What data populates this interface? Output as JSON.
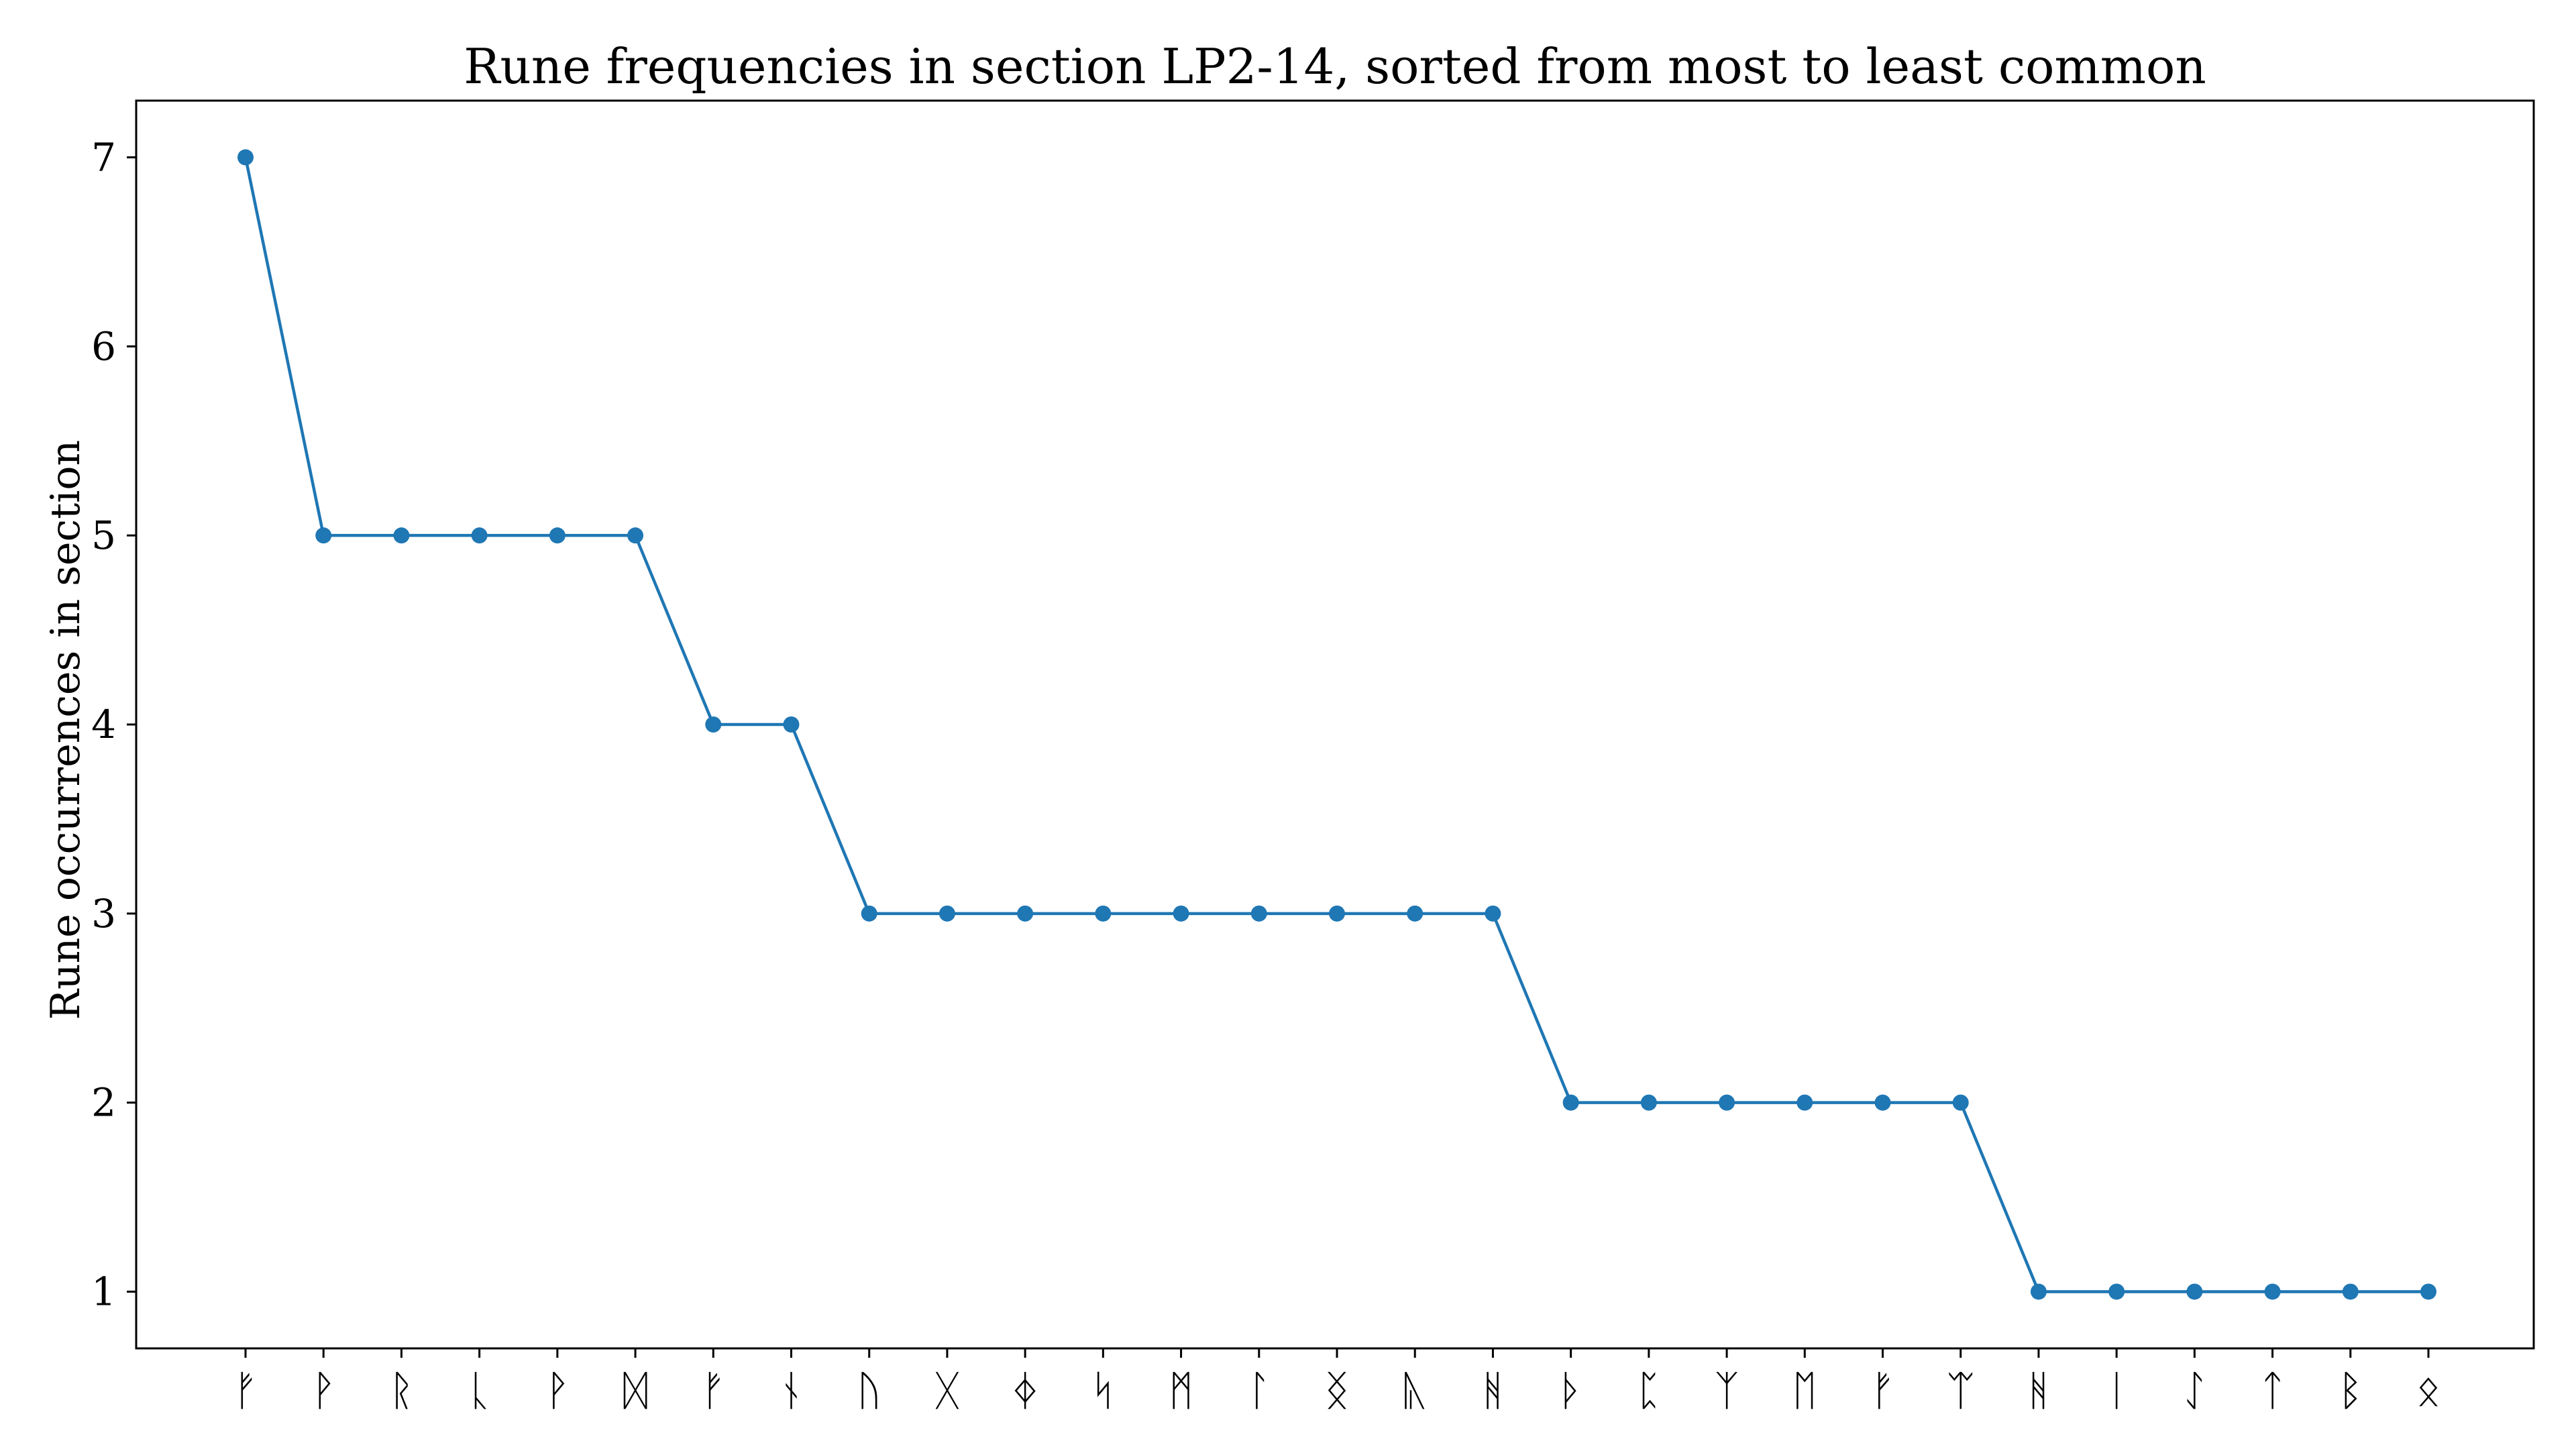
{
  "chart_data": {
    "type": "line",
    "title": "Rune frequencies in section LP2-14, sorted from most to least common",
    "xlabel": "",
    "ylabel": "Rune occurrences in section",
    "categories": [
      "ᚠ",
      "ᚹ",
      "ᚱ",
      "ᚳ",
      "ᚹ",
      "ᛞ",
      "ᚠ",
      "ᚾ",
      "ᚢ",
      "ᚷ",
      "ᛄ",
      "ᛋ",
      "ᛗ",
      "ᛚ",
      "ᛝ",
      "ᚣ",
      "ᚻ",
      "ᚦ",
      "ᛈ",
      "ᛉ",
      "ᛖ",
      "ᚠ",
      "ᛠ",
      "ᚻ",
      "ᛁ",
      "ᛇ",
      "ᛏ",
      "ᛒ",
      "ᛟ"
    ],
    "series": [
      {
        "values": [
          7,
          5,
          5,
          5,
          5,
          5,
          4,
          4,
          3,
          3,
          3,
          3,
          3,
          3,
          3,
          3,
          3,
          2,
          2,
          2,
          2,
          2,
          2,
          1,
          1,
          1,
          1,
          1,
          1
        ],
        "color": "#1f77b4"
      }
    ],
    "yticks": [
      1,
      2,
      3,
      4,
      5,
      6,
      7
    ],
    "ylim": [
      0.7,
      7.3
    ],
    "grid": false,
    "legend": "none"
  }
}
